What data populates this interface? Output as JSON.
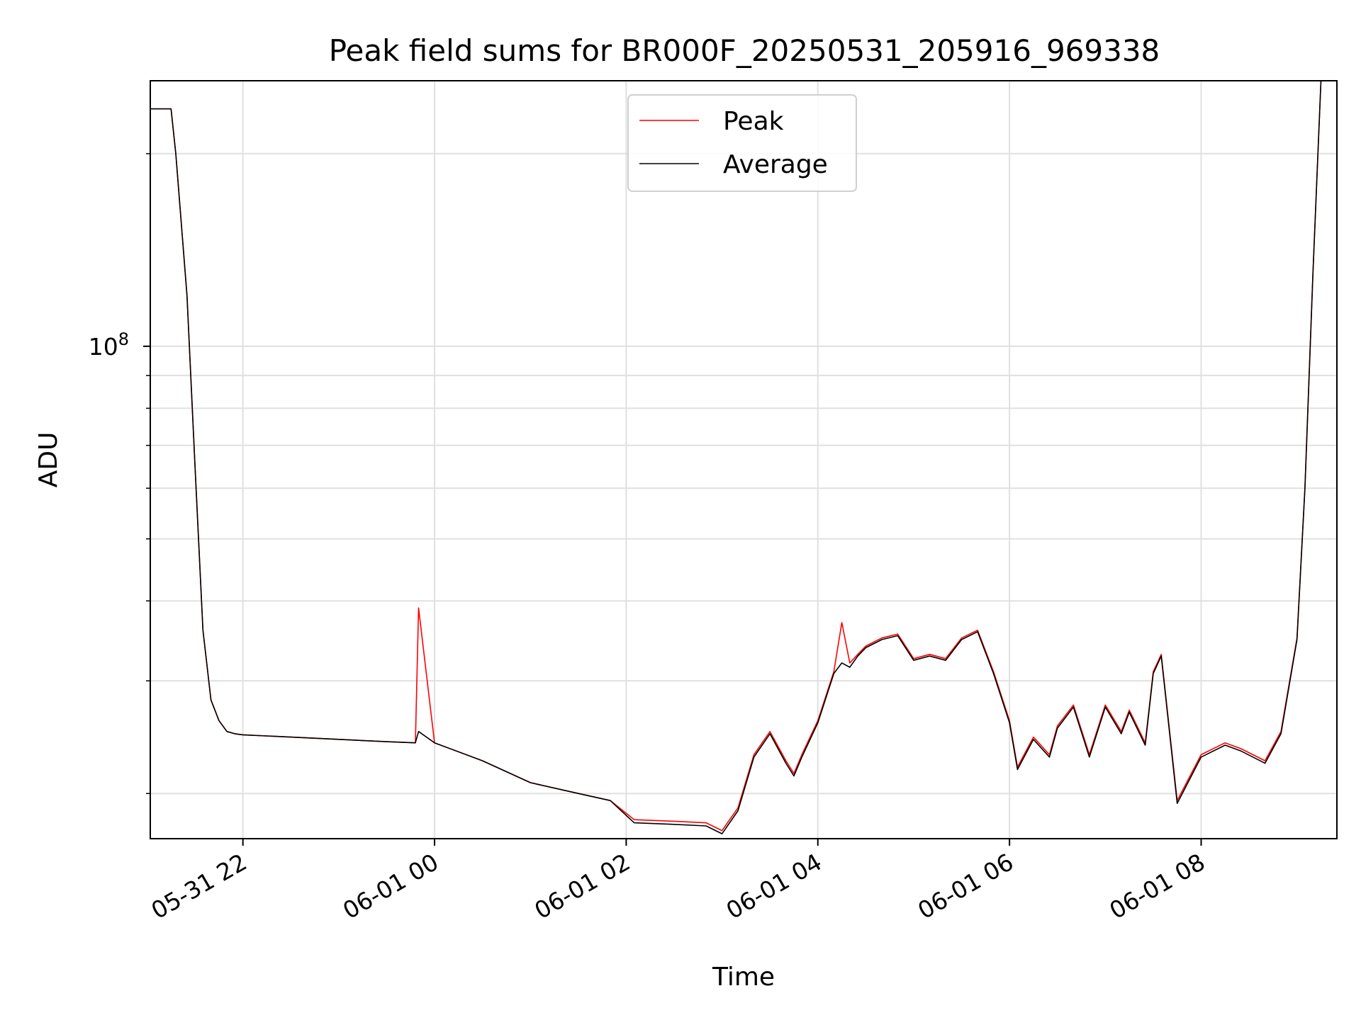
{
  "chart_data": {
    "type": "line",
    "title": "Peak field sums for BR000F_20250531_205916_969338",
    "xlabel": "Time",
    "ylabel": "ADU",
    "y_scale": "log",
    "grid": true,
    "legend_position": "top-center",
    "colors": {
      "peak": "#ff0000",
      "average": "#000000",
      "grid": "#e0e0e0"
    },
    "x_ticks": [
      "05-31 22",
      "06-01 00",
      "06-01 02",
      "06-01 04",
      "06-01 06",
      "06-01 08"
    ],
    "y_major_ticks": [
      {
        "value": 100000000,
        "base": "10",
        "exponent": "8"
      }
    ],
    "xlim": [
      "2025-05-31 21:02",
      "2025-06-01 09:25"
    ],
    "ylim": [
      17000000,
      260000000
    ],
    "series": [
      {
        "name": "Peak",
        "color": "#ff0000",
        "x": [
          "2025-05-31 21:02",
          "2025-05-31 21:15",
          "2025-05-31 21:18",
          "2025-05-31 21:25",
          "2025-05-31 21:30",
          "2025-05-31 21:35",
          "2025-05-31 21:40",
          "2025-05-31 21:45",
          "2025-05-31 21:50",
          "2025-05-31 21:55",
          "2025-05-31 22:00",
          "2025-05-31 22:30",
          "2025-05-31 23:00",
          "2025-05-31 23:30",
          "2025-05-31 23:48",
          "2025-05-31 23:50",
          "2025-06-01 00:00",
          "2025-06-01 00:30",
          "2025-06-01 01:00",
          "2025-06-01 01:30",
          "2025-06-01 01:50",
          "2025-06-01 02:05",
          "2025-06-01 02:30",
          "2025-06-01 02:50",
          "2025-06-01 03:00",
          "2025-06-01 03:10",
          "2025-06-01 03:20",
          "2025-06-01 03:30",
          "2025-06-01 03:40",
          "2025-06-01 03:45",
          "2025-06-01 03:50",
          "2025-06-01 04:00",
          "2025-06-01 04:10",
          "2025-06-01 04:15",
          "2025-06-01 04:20",
          "2025-06-01 04:25",
          "2025-06-01 04:30",
          "2025-06-01 04:40",
          "2025-06-01 04:50",
          "2025-06-01 05:00",
          "2025-06-01 05:10",
          "2025-06-01 05:20",
          "2025-06-01 05:30",
          "2025-06-01 05:40",
          "2025-06-01 05:50",
          "2025-06-01 06:00",
          "2025-06-01 06:05",
          "2025-06-01 06:15",
          "2025-06-01 06:25",
          "2025-06-01 06:30",
          "2025-06-01 06:40",
          "2025-06-01 06:50",
          "2025-06-01 07:00",
          "2025-06-01 07:10",
          "2025-06-01 07:15",
          "2025-06-01 07:25",
          "2025-06-01 07:30",
          "2025-06-01 07:35",
          "2025-06-01 07:45",
          "2025-06-01 08:00",
          "2025-06-01 08:15",
          "2025-06-01 08:25",
          "2025-06-01 08:40",
          "2025-06-01 08:50",
          "2025-06-01 09:00",
          "2025-06-01 09:05",
          "2025-06-01 09:10",
          "2025-06-01 09:15"
        ],
        "y": [
          235000000,
          235000000,
          200000000,
          120000000,
          65000000,
          36000000,
          28000000,
          26000000,
          25000000,
          24800000,
          24700000,
          24500000,
          24300000,
          24100000,
          24000000,
          39000000,
          24000000,
          22500000,
          20800000,
          20000000,
          19500000,
          18200000,
          18100000,
          18000000,
          17500000,
          19000000,
          23000000,
          25000000,
          22500000,
          21500000,
          23000000,
          26000000,
          31000000,
          37000000,
          32000000,
          33000000,
          34000000,
          35000000,
          35500000,
          32500000,
          33000000,
          32500000,
          35000000,
          36000000,
          31000000,
          26000000,
          22000000,
          24500000,
          23000000,
          25500000,
          27500000,
          23000000,
          27500000,
          25000000,
          27000000,
          24000000,
          31000000,
          33000000,
          19500000,
          23000000,
          24000000,
          23500000,
          22500000,
          25000000,
          35000000,
          60000000,
          130000000,
          260000000
        ]
      },
      {
        "name": "Average",
        "color": "#000000",
        "x": [
          "2025-05-31 21:02",
          "2025-05-31 21:15",
          "2025-05-31 21:18",
          "2025-05-31 21:25",
          "2025-05-31 21:30",
          "2025-05-31 21:35",
          "2025-05-31 21:40",
          "2025-05-31 21:45",
          "2025-05-31 21:50",
          "2025-05-31 21:55",
          "2025-05-31 22:00",
          "2025-05-31 22:30",
          "2025-05-31 23:00",
          "2025-05-31 23:30",
          "2025-05-31 23:48",
          "2025-05-31 23:50",
          "2025-06-01 00:00",
          "2025-06-01 00:30",
          "2025-06-01 01:00",
          "2025-06-01 01:30",
          "2025-06-01 01:50",
          "2025-06-01 02:05",
          "2025-06-01 02:30",
          "2025-06-01 02:50",
          "2025-06-01 03:00",
          "2025-06-01 03:10",
          "2025-06-01 03:20",
          "2025-06-01 03:30",
          "2025-06-01 03:40",
          "2025-06-01 03:45",
          "2025-06-01 03:50",
          "2025-06-01 04:00",
          "2025-06-01 04:10",
          "2025-06-01 04:15",
          "2025-06-01 04:20",
          "2025-06-01 04:25",
          "2025-06-01 04:30",
          "2025-06-01 04:40",
          "2025-06-01 04:50",
          "2025-06-01 05:00",
          "2025-06-01 05:10",
          "2025-06-01 05:20",
          "2025-06-01 05:30",
          "2025-06-01 05:40",
          "2025-06-01 05:50",
          "2025-06-01 06:00",
          "2025-06-01 06:05",
          "2025-06-01 06:15",
          "2025-06-01 06:25",
          "2025-06-01 06:30",
          "2025-06-01 06:40",
          "2025-06-01 06:50",
          "2025-06-01 07:00",
          "2025-06-01 07:10",
          "2025-06-01 07:15",
          "2025-06-01 07:25",
          "2025-06-01 07:30",
          "2025-06-01 07:35",
          "2025-06-01 07:45",
          "2025-06-01 08:00",
          "2025-06-01 08:15",
          "2025-06-01 08:25",
          "2025-06-01 08:40",
          "2025-06-01 08:50",
          "2025-06-01 09:00",
          "2025-06-01 09:05",
          "2025-06-01 09:10",
          "2025-06-01 09:15"
        ],
        "y": [
          235000000,
          235000000,
          200000000,
          120000000,
          65000000,
          36000000,
          28000000,
          26000000,
          25000000,
          24800000,
          24700000,
          24500000,
          24300000,
          24100000,
          24000000,
          25000000,
          24000000,
          22500000,
          20800000,
          20000000,
          19500000,
          18000000,
          17900000,
          17800000,
          17300000,
          18800000,
          22800000,
          24800000,
          22300000,
          21300000,
          22800000,
          25800000,
          30800000,
          32000000,
          31500000,
          32800000,
          33800000,
          34800000,
          35300000,
          32300000,
          32800000,
          32300000,
          34800000,
          35800000,
          30800000,
          25800000,
          21800000,
          24300000,
          22800000,
          25300000,
          27300000,
          22800000,
          27300000,
          24800000,
          26800000,
          23800000,
          30800000,
          32800000,
          19300000,
          22800000,
          23800000,
          23300000,
          22300000,
          24800000,
          34800000,
          60000000,
          130000000,
          260000000
        ]
      }
    ]
  }
}
